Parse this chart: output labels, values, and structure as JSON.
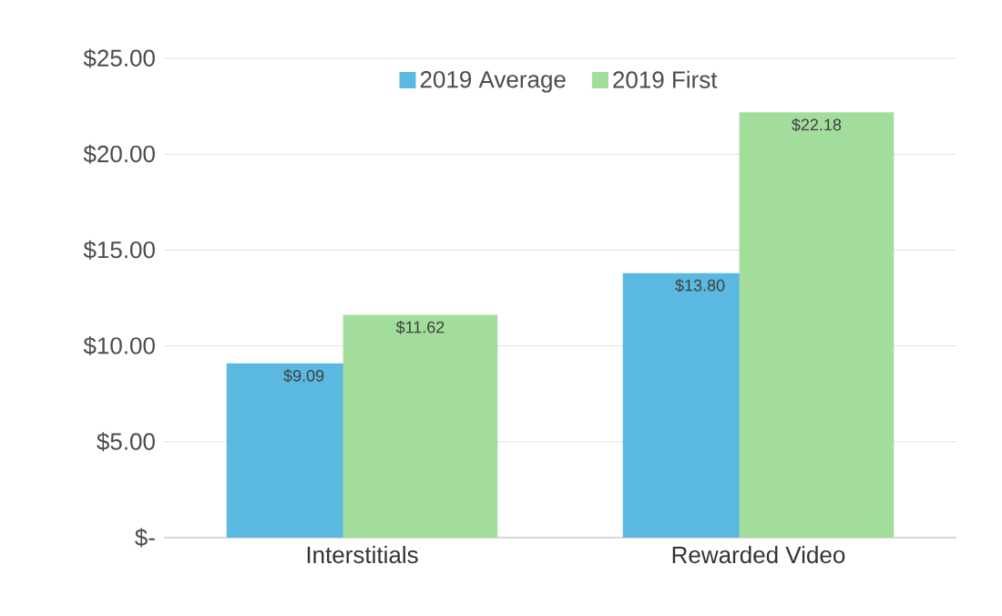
{
  "chart_data": {
    "type": "bar",
    "categories": [
      "Interstitials",
      "Rewarded Video"
    ],
    "series": [
      {
        "name": "2019 Average",
        "color": "#5bb8e0",
        "values": [
          9.09,
          13.8
        ],
        "value_labels": [
          "$9.09",
          "$13.80"
        ]
      },
      {
        "name": "2019 First",
        "color": "#a3dd9b",
        "values": [
          11.62,
          22.18
        ],
        "value_labels": [
          "$11.62",
          "$22.18"
        ]
      }
    ],
    "ylim": [
      0,
      25
    ],
    "yticks": [
      {
        "value": 0,
        "label": "$-"
      },
      {
        "value": 5,
        "label": "$5.00"
      },
      {
        "value": 10,
        "label": "$10.00"
      },
      {
        "value": 15,
        "label": "$15.00"
      },
      {
        "value": 20,
        "label": "$20.00"
      },
      {
        "value": 25,
        "label": "$25.00"
      }
    ],
    "grid": "y",
    "legend": "top"
  }
}
